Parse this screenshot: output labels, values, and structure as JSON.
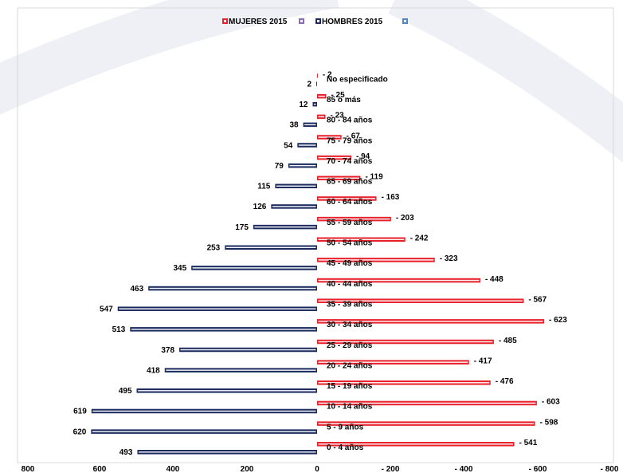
{
  "chart_data": {
    "type": "bar",
    "orientation": "horizontal",
    "title": "",
    "xlabel": "",
    "ylabel": "",
    "legend_position": "top-center",
    "grid": false,
    "categories": [
      "0 - 4 años",
      "5 - 9 años",
      "10 - 14 años",
      "15 - 19 años",
      "20 - 24 años",
      "25 - 29 años",
      "30 - 34 años",
      "35 - 39 años",
      "40 - 44 años",
      "45 - 49 años",
      "50 - 54 años",
      "55 - 59 años",
      "60 - 64 años",
      "65 - 69 años",
      "70 - 74 años",
      "75 - 79 años",
      "80 - 84 años",
      "85 o más",
      "No especificado"
    ],
    "series": [
      {
        "name": "MUJERES 2015",
        "color": "#e8202a",
        "values": [
          541,
          598,
          603,
          476,
          417,
          485,
          623,
          567,
          448,
          323,
          242,
          203,
          163,
          119,
          94,
          67,
          23,
          25,
          2
        ],
        "value_labels": [
          "- 541",
          "- 598",
          "- 603",
          "- 476",
          "- 417",
          "- 485",
          "- 623",
          "- 567",
          "- 448",
          "- 323",
          "- 242",
          "- 203",
          "- 163",
          "- 119",
          "- 94",
          "- 67",
          "- 23",
          "- 25",
          "- 2"
        ]
      },
      {
        "name": "HOMBRES 2015",
        "color": "#1a2a5e",
        "values": [
          493,
          620,
          619,
          495,
          418,
          378,
          513,
          547,
          463,
          345,
          253,
          175,
          126,
          115,
          79,
          54,
          38,
          12,
          2
        ],
        "value_labels": [
          "493",
          "620",
          "619",
          "495",
          "418",
          "378",
          "513",
          "547",
          "463",
          "345",
          "253",
          "175",
          "126",
          "115",
          "79",
          "54",
          "38",
          "12",
          "2"
        ]
      }
    ],
    "xlim": [
      -800,
      800
    ],
    "x_ticks": [
      "800",
      "600",
      "400",
      "200",
      "0",
      "- 200",
      "- 400",
      "- 600",
      "- 800"
    ],
    "legend_swatch_colors": [
      "#8e6ab8",
      "#4a86c8"
    ]
  }
}
